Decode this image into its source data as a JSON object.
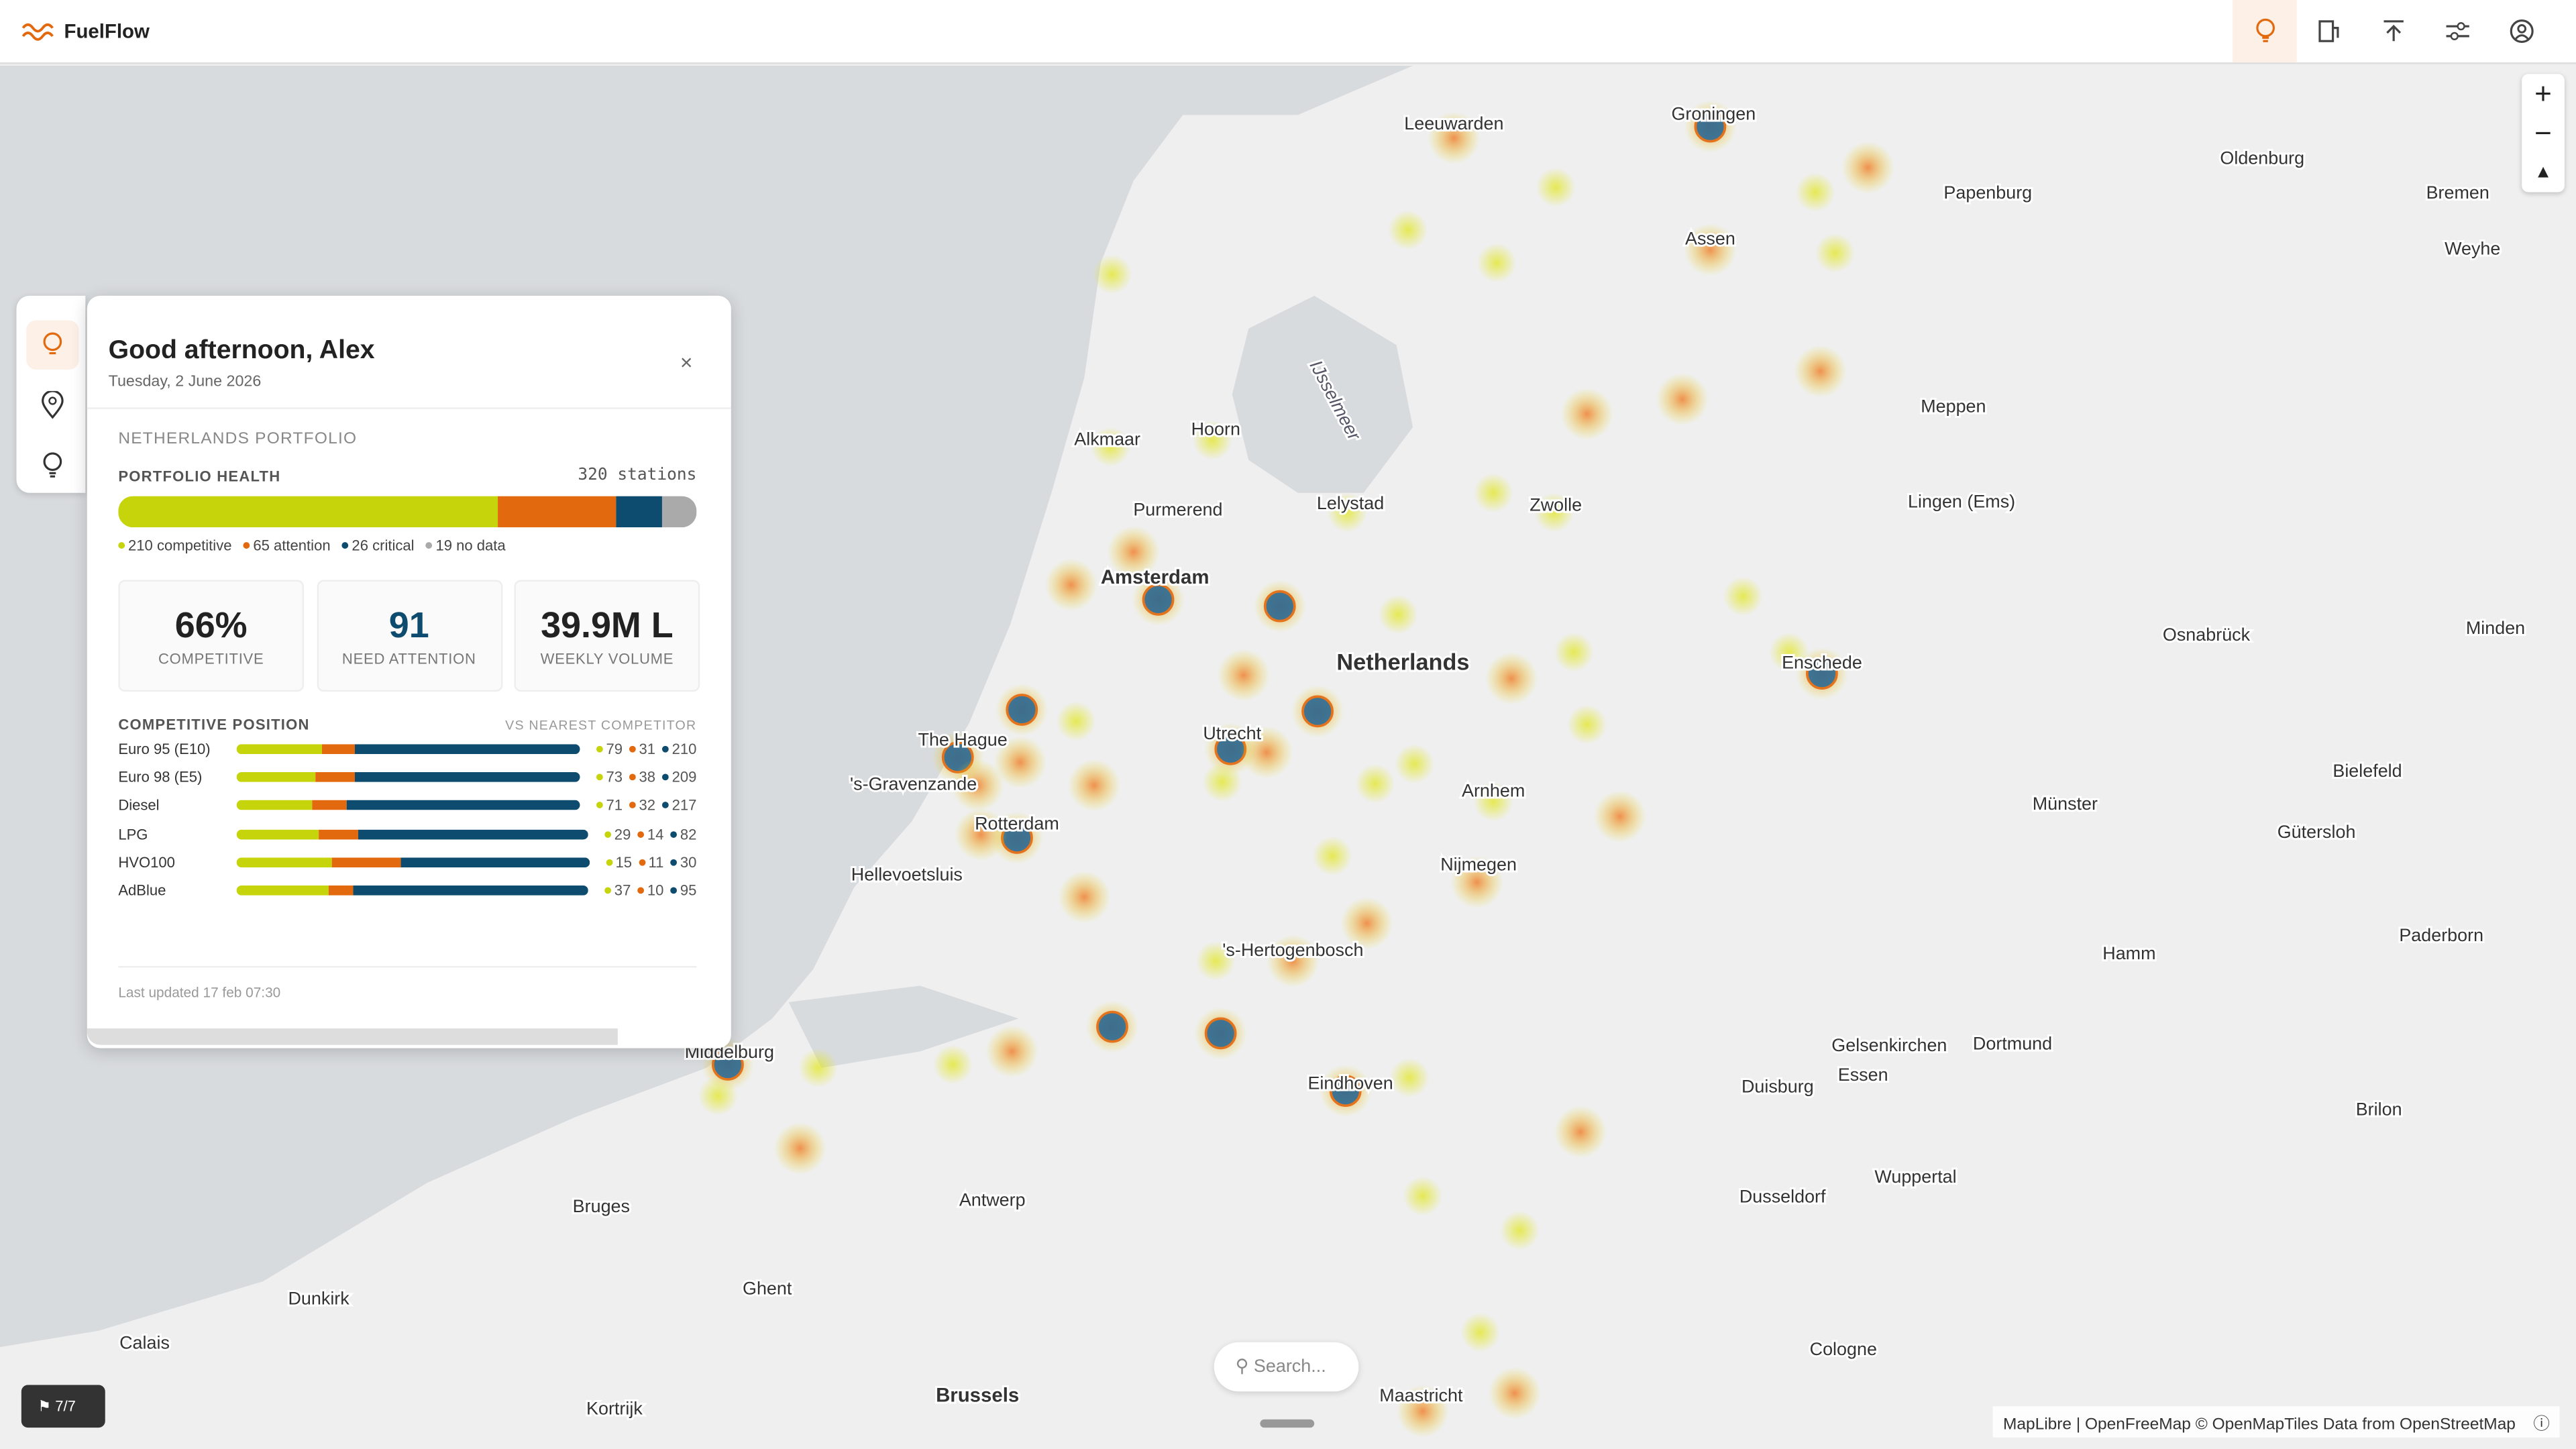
{
  "header": {
    "brand": "FuelFlow"
  },
  "panel": {
    "greeting": "Good afternoon, Alex",
    "date": "Tuesday, 2 June 2026",
    "section": "NETHERLANDS PORTFOLIO",
    "health_title": "PORTFOLIO HEALTH",
    "stations": {
      "count": 320,
      "label": "stations"
    },
    "health": [
      {
        "count": 210,
        "label": "competitive",
        "color": "#c5d40b"
      },
      {
        "count": 65,
        "label": "attention",
        "color": "#e3690e"
      },
      {
        "count": 26,
        "label": "critical",
        "color": "#0d4c6e"
      },
      {
        "count": 19,
        "label": "no data",
        "color": "#aaaaaa"
      }
    ],
    "kpis": [
      {
        "value": "66%",
        "label": "COMPETITIVE"
      },
      {
        "value": "91",
        "label": "NEED ATTENTION"
      },
      {
        "value": "39.9M L",
        "label": "WEEKLY VOLUME"
      }
    ],
    "position_title": "COMPETITIVE POSITION",
    "position_note": "VS NEAREST COMPETITOR",
    "rows": [
      {
        "fuel": "Euro 95 (E10)",
        "competitive": 79,
        "attention": 31,
        "critical": 210
      },
      {
        "fuel": "Euro 98 (E5)",
        "competitive": 73,
        "attention": 38,
        "critical": 209
      },
      {
        "fuel": "Diesel",
        "competitive": 71,
        "attention": 32,
        "critical": 217
      },
      {
        "fuel": "LPG",
        "competitive": 29,
        "attention": 14,
        "critical": 82
      },
      {
        "fuel": "HVO100",
        "competitive": 15,
        "attention": 11,
        "critical": 30
      },
      {
        "fuel": "AdBlue",
        "competitive": 37,
        "attention": 10,
        "critical": 95
      }
    ],
    "updated": "Last updated 17 feb 07:30"
  },
  "map": {
    "cities": [
      "Leeuwarden",
      "Groningen",
      "Oldenburg",
      "Papenburg",
      "Bremen",
      "Weyhe",
      "Assen",
      "Meppen",
      "Alkmaar",
      "Hoorn",
      "Purmerend",
      "Lelystad",
      "Zwolle",
      "Lingen (Ems)",
      "Amsterdam",
      "Netherlands",
      "Osnabrück",
      "Enschede",
      "Minden",
      "The Hague",
      "Utrecht",
      "'s-Gravenzande",
      "Arnhem",
      "Bielefeld",
      "Münster",
      "Gütersloh",
      "Rotterdam",
      "Hellevoetsluis",
      "Nijmegen",
      "Paderborn",
      "'s-Hertogenbosch",
      "Hamm",
      "Middelburg",
      "Gelsenkirchen",
      "Dortmund",
      "Essen",
      "Duisburg",
      "Eindhoven",
      "Brilon",
      "Wuppertal",
      "Bruges",
      "Antwerp",
      "Dusseldorf",
      "Ghent",
      "Dunkirk",
      "Calais",
      "Cologne",
      "Brussels",
      "Maastricht",
      "Kortrijk",
      "IJsselmeer"
    ],
    "search": "Search...",
    "attribution": "MapLibre | OpenFreeMap © OpenMapTiles Data from OpenStreetMap",
    "badge": "7/7"
  }
}
